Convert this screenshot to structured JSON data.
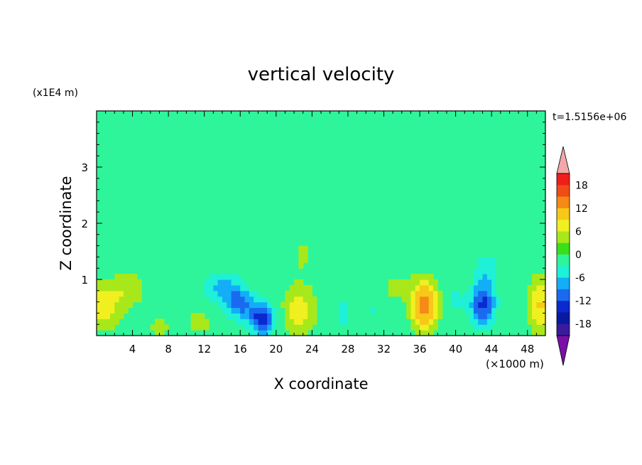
{
  "chart_data": {
    "type": "heatmap",
    "title": "vertical velocity",
    "xlabel": "X coordinate",
    "ylabel": "Z coordinate",
    "x_unit": "(×1000 m)",
    "y_unit": "(x1E4 m)",
    "time_label": "t=1.5156e+06",
    "xlim": [
      0,
      50
    ],
    "ylim": [
      0,
      4
    ],
    "x_ticks": [
      4,
      8,
      12,
      16,
      20,
      24,
      28,
      32,
      36,
      40,
      44,
      48
    ],
    "y_ticks": [
      1,
      2,
      3
    ],
    "colorbar": {
      "tick_labels": [
        18,
        12,
        6,
        0,
        -6,
        -12,
        -18
      ],
      "levels": [
        -21,
        -18,
        -15,
        -12,
        -9,
        -6,
        -3,
        0,
        3,
        6,
        9,
        12,
        15,
        18,
        21
      ],
      "colors": [
        "#7a0fa8",
        "#3a1a9e",
        "#0a1aa0",
        "#0a2ad0",
        "#1a6af0",
        "#13aef7",
        "#1ff0d8",
        "#2ef59a",
        "#39e01a",
        "#a8e81a",
        "#f0f020",
        "#f7c818",
        "#f58a16",
        "#f04c16",
        "#f01e1a",
        "#f2a8a8"
      ]
    },
    "background_value": 0.5,
    "features": [
      {
        "x": 0.5,
        "z": 0.5,
        "value": 8,
        "sx": 2.0,
        "sz": 0.4
      },
      {
        "x": 3.5,
        "z": 0.85,
        "value": 5,
        "sx": 2.0,
        "sz": 0.35
      },
      {
        "x": 7.0,
        "z": 0.15,
        "value": 4,
        "sx": 1.2,
        "sz": 0.2
      },
      {
        "x": 11.5,
        "z": 0.25,
        "value": 4,
        "sx": 1.6,
        "sz": 0.25
      },
      {
        "x": 14.0,
        "z": 0.85,
        "value": -7,
        "sx": 2.5,
        "sz": 0.35
      },
      {
        "x": 18.5,
        "z": 0.3,
        "value": -15,
        "sx": 1.4,
        "sz": 0.3
      },
      {
        "x": 16.0,
        "z": 0.55,
        "value": -9,
        "sx": 1.6,
        "sz": 0.3
      },
      {
        "x": 22.5,
        "z": 0.45,
        "value": 7,
        "sx": 2.0,
        "sz": 0.5
      },
      {
        "x": 23.0,
        "z": 1.45,
        "value": 4,
        "sx": 1.0,
        "sz": 0.25
      },
      {
        "x": 27.5,
        "z": 0.4,
        "value": -5,
        "sx": 1.2,
        "sz": 0.35
      },
      {
        "x": 31.0,
        "z": 0.45,
        "value": -4,
        "sx": 1.0,
        "sz": 0.3
      },
      {
        "x": 33.0,
        "z": 0.85,
        "value": 3,
        "sx": 2.0,
        "sz": 0.35
      },
      {
        "x": 36.5,
        "z": 0.55,
        "value": 14,
        "sx": 1.5,
        "sz": 0.45
      },
      {
        "x": 40.0,
        "z": 0.65,
        "value": -4,
        "sx": 1.0,
        "sz": 0.4
      },
      {
        "x": 43.0,
        "z": 0.55,
        "value": -13,
        "sx": 1.5,
        "sz": 0.4
      },
      {
        "x": 43.5,
        "z": 1.2,
        "value": -5,
        "sx": 1.5,
        "sz": 0.4
      },
      {
        "x": 49.5,
        "z": 0.55,
        "value": 9,
        "sx": 1.5,
        "sz": 0.5
      },
      {
        "x": 25.0,
        "z": 2.3,
        "value": 1.2,
        "sx": 12.0,
        "sz": 0.45
      }
    ]
  }
}
